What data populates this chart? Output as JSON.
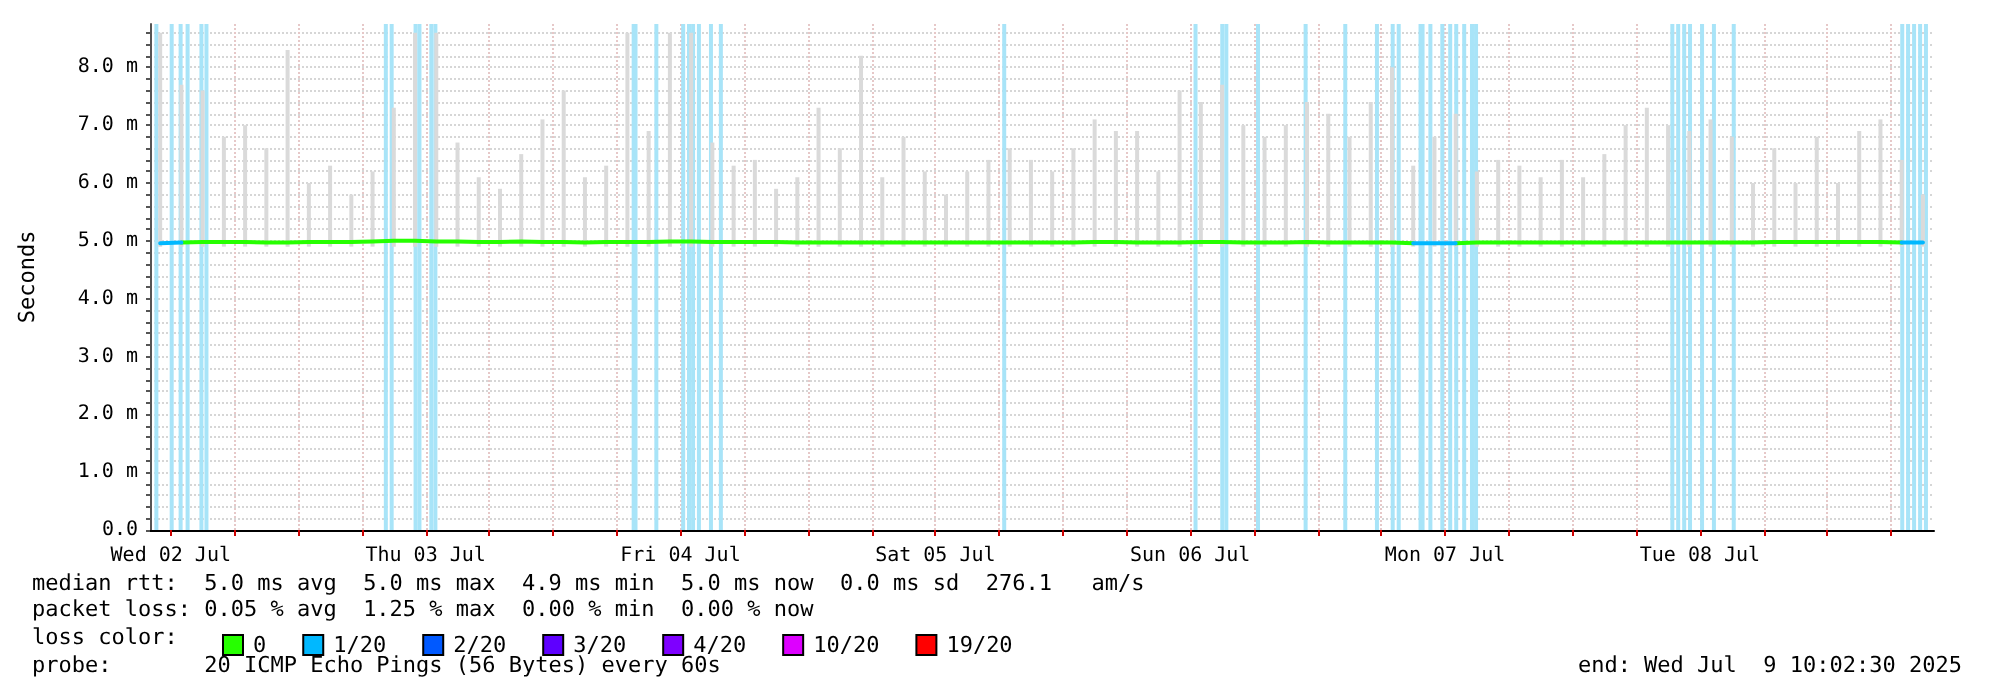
{
  "chart_data": {
    "type": "line",
    "ylabel": "Seconds",
    "legend_title": "loss color:",
    "legend": "bottom",
    "grid": true,
    "marker": "none",
    "line_style": "solid",
    "annotations": [
      "median rtt:  5.0 ms avg  5.0 ms max  4.9 ms min  5.0 ms now  0.0 ms sd  276.1   am/s",
      "packet loss: 0.05 % avg  1.25 % max  0.00 % min  0.00 % now",
      "probe:       20 ICMP Echo Pings (56 Bytes) every 60s",
      "end: Wed Jul  9 10:02:30 2025"
    ],
    "xlim": [
      "2025-07-02T10:02:30",
      "2025-07-09T10:02:30"
    ],
    "xticks": [
      {
        "value": "2025-07-02T12:00",
        "label": "Wed 02 Jul"
      },
      {
        "value": "2025-07-02T18:00",
        "label": null
      },
      {
        "value": "2025-07-03T00:00",
        "label": null
      },
      {
        "value": "2025-07-03T06:00",
        "label": null
      },
      {
        "value": "2025-07-03T12:00",
        "label": "Thu 03 Jul"
      },
      {
        "value": "2025-07-03T18:00",
        "label": null
      },
      {
        "value": "2025-07-04T00:00",
        "label": null
      },
      {
        "value": "2025-07-04T06:00",
        "label": null
      },
      {
        "value": "2025-07-04T12:00",
        "label": "Fri 04 Jul"
      },
      {
        "value": "2025-07-04T18:00",
        "label": null
      },
      {
        "value": "2025-07-05T00:00",
        "label": null
      },
      {
        "value": "2025-07-05T06:00",
        "label": null
      },
      {
        "value": "2025-07-05T12:00",
        "label": "Sat 05 Jul"
      },
      {
        "value": "2025-07-05T18:00",
        "label": null
      },
      {
        "value": "2025-07-06T00:00",
        "label": null
      },
      {
        "value": "2025-07-06T06:00",
        "label": null
      },
      {
        "value": "2025-07-06T12:00",
        "label": "Sun 06 Jul"
      },
      {
        "value": "2025-07-06T18:00",
        "label": null
      },
      {
        "value": "2025-07-07T00:00",
        "label": null
      },
      {
        "value": "2025-07-07T06:00",
        "label": null
      },
      {
        "value": "2025-07-07T12:00",
        "label": "Mon 07 Jul"
      },
      {
        "value": "2025-07-07T18:00",
        "label": null
      },
      {
        "value": "2025-07-08T00:00",
        "label": null
      },
      {
        "value": "2025-07-08T06:00",
        "label": null
      },
      {
        "value": "2025-07-08T12:00",
        "label": "Tue 08 Jul"
      },
      {
        "value": "2025-07-08T18:00",
        "label": null
      },
      {
        "value": "2025-07-09T00:00",
        "label": null
      },
      {
        "value": "2025-07-09T06:00",
        "label": null
      }
    ],
    "ylim": [
      0,
      8.75
    ],
    "yticks": [
      {
        "value": 0,
        "label": "0.0"
      },
      {
        "value": 0.2,
        "label": null
      },
      {
        "value": 0.4,
        "label": null
      },
      {
        "value": 0.6,
        "label": null
      },
      {
        "value": 0.8,
        "label": null
      },
      {
        "value": 1,
        "label": "1.0 m"
      },
      {
        "value": 1.2,
        "label": null
      },
      {
        "value": 1.4,
        "label": null
      },
      {
        "value": 1.6,
        "label": null
      },
      {
        "value": 1.8,
        "label": null
      },
      {
        "value": 2,
        "label": "2.0 m"
      },
      {
        "value": 2.2,
        "label": null
      },
      {
        "value": 2.4,
        "label": null
      },
      {
        "value": 2.6,
        "label": null
      },
      {
        "value": 2.8,
        "label": null
      },
      {
        "value": 3,
        "label": "3.0 m"
      },
      {
        "value": 3.2,
        "label": null
      },
      {
        "value": 3.4,
        "label": null
      },
      {
        "value": 3.6,
        "label": null
      },
      {
        "value": 3.8,
        "label": null
      },
      {
        "value": 4,
        "label": "4.0 m"
      },
      {
        "value": 4.2,
        "label": null
      },
      {
        "value": 4.4,
        "label": null
      },
      {
        "value": 4.6,
        "label": null
      },
      {
        "value": 4.8,
        "label": null
      },
      {
        "value": 5,
        "label": "5.0 m"
      },
      {
        "value": 5.2,
        "label": null
      },
      {
        "value": 5.4,
        "label": null
      },
      {
        "value": 5.6,
        "label": null
      },
      {
        "value": 5.8,
        "label": null
      },
      {
        "value": 6,
        "label": "6.0 m"
      },
      {
        "value": 6.2,
        "label": null
      },
      {
        "value": 6.4,
        "label": null
      },
      {
        "value": 6.6,
        "label": null
      },
      {
        "value": 6.8,
        "label": null
      },
      {
        "value": 7,
        "label": "7.0 m"
      },
      {
        "value": 7.2,
        "label": null
      },
      {
        "value": 7.4,
        "label": null
      },
      {
        "value": 7.6,
        "label": null
      },
      {
        "value": 7.8,
        "label": null
      },
      {
        "value": 8,
        "label": "8.0 m"
      },
      {
        "value": 8.2,
        "label": null
      },
      {
        "value": 8.4,
        "label": null
      },
      {
        "value": 8.6,
        "label": null
      }
    ],
    "x": [
      "2025-07-02T11:00",
      "2025-07-02T13:00",
      "2025-07-02T15:00",
      "2025-07-02T17:00",
      "2025-07-02T19:00",
      "2025-07-02T21:00",
      "2025-07-02T23:00",
      "2025-07-03T01:00",
      "2025-07-03T03:00",
      "2025-07-03T05:00",
      "2025-07-03T07:00",
      "2025-07-03T09:00",
      "2025-07-03T11:00",
      "2025-07-03T13:00",
      "2025-07-03T15:00",
      "2025-07-03T17:00",
      "2025-07-03T19:00",
      "2025-07-03T21:00",
      "2025-07-03T23:00",
      "2025-07-04T01:00",
      "2025-07-04T03:00",
      "2025-07-04T05:00",
      "2025-07-04T07:00",
      "2025-07-04T09:00",
      "2025-07-04T11:00",
      "2025-07-04T13:00",
      "2025-07-04T15:00",
      "2025-07-04T17:00",
      "2025-07-04T19:00",
      "2025-07-04T21:00",
      "2025-07-04T23:00",
      "2025-07-05T01:00",
      "2025-07-05T03:00",
      "2025-07-05T05:00",
      "2025-07-05T07:00",
      "2025-07-05T09:00",
      "2025-07-05T11:00",
      "2025-07-05T13:00",
      "2025-07-05T15:00",
      "2025-07-05T17:00",
      "2025-07-05T19:00",
      "2025-07-05T21:00",
      "2025-07-05T23:00",
      "2025-07-06T01:00",
      "2025-07-06T03:00",
      "2025-07-06T05:00",
      "2025-07-06T07:00",
      "2025-07-06T09:00",
      "2025-07-06T11:00",
      "2025-07-06T13:00",
      "2025-07-06T15:00",
      "2025-07-06T17:00",
      "2025-07-06T19:00",
      "2025-07-06T21:00",
      "2025-07-06T23:00",
      "2025-07-07T01:00",
      "2025-07-07T03:00",
      "2025-07-07T05:00",
      "2025-07-07T07:00",
      "2025-07-07T09:00",
      "2025-07-07T11:00",
      "2025-07-07T13:00",
      "2025-07-07T15:00",
      "2025-07-07T17:00",
      "2025-07-07T19:00",
      "2025-07-07T21:00",
      "2025-07-07T23:00",
      "2025-07-08T01:00",
      "2025-07-08T03:00",
      "2025-07-08T05:00",
      "2025-07-08T07:00",
      "2025-07-08T09:00",
      "2025-07-08T11:00",
      "2025-07-08T13:00",
      "2025-07-08T15:00",
      "2025-07-08T17:00",
      "2025-07-08T19:00",
      "2025-07-08T21:00",
      "2025-07-08T23:00",
      "2025-07-09T01:00",
      "2025-07-09T03:00",
      "2025-07-09T05:00",
      "2025-07-09T07:00",
      "2025-07-09T09:00"
    ],
    "series": [
      {
        "type": "bar",
        "color": "#dadada",
        "base": [
          4.9,
          4.9,
          4.9,
          4.9,
          4.9,
          4.9,
          4.9,
          4.9,
          4.9,
          4.9,
          4.9,
          4.9,
          4.9,
          4.9,
          4.9,
          4.9,
          4.9,
          4.9,
          4.9,
          4.9,
          4.9,
          4.9,
          4.9,
          4.9,
          4.9,
          4.9,
          4.9,
          4.9,
          4.9,
          4.9,
          4.9,
          4.9,
          4.9,
          4.9,
          4.9,
          4.9,
          4.9,
          4.9,
          4.9,
          4.9,
          4.9,
          4.9,
          4.9,
          4.9,
          4.9,
          4.9,
          4.9,
          4.9,
          4.9,
          4.9,
          4.9,
          4.9,
          4.9,
          4.9,
          4.9,
          4.9,
          4.9,
          4.9,
          4.9,
          4.9,
          4.9,
          4.9,
          4.9,
          4.9,
          4.9,
          4.9,
          4.9,
          4.9,
          4.9,
          4.9,
          4.9,
          4.9,
          4.9,
          4.9,
          4.9,
          4.9,
          4.9,
          4.9,
          4.9,
          4.9,
          4.9,
          4.9,
          4.9,
          4.9
        ],
        "values": [
          3.7,
          2.8,
          2.7,
          1.9,
          2.1,
          1.7,
          3.4,
          1.1,
          1.4,
          0.9,
          1.3,
          2.4,
          3.7,
          3.7,
          1.8,
          1.2,
          1.0,
          1.6,
          2.2,
          2.7,
          1.2,
          1.4,
          3.7,
          2.0,
          3.7,
          3.7,
          1.8,
          1.4,
          1.5,
          1.0,
          1.2,
          2.4,
          1.7,
          3.3,
          1.2,
          1.9,
          1.3,
          0.9,
          1.3,
          1.5,
          1.7,
          1.5,
          1.3,
          1.7,
          2.2,
          2.0,
          2.0,
          1.3,
          2.7,
          2.5,
          2.8,
          2.1,
          1.9,
          2.1,
          2.5,
          2.3,
          1.9,
          2.5,
          3.1,
          1.4,
          1.9,
          2.3,
          1.3,
          1.5,
          1.4,
          1.2,
          1.5,
          1.2,
          1.6,
          2.1,
          2.4,
          2.1,
          2.0,
          2.2,
          1.9,
          1.1,
          1.7,
          1.1,
          1.9,
          1.1,
          2.0,
          2.2,
          1.5,
          0.9
        ]
      },
      {
        "name": "0",
        "color": "#26ff00",
        "values": [
          null,
          4.97,
          4.98,
          4.98,
          4.98,
          4.97,
          4.97,
          4.98,
          4.98,
          4.98,
          4.99,
          5.0,
          5.0,
          4.99,
          4.99,
          4.98,
          4.98,
          4.99,
          4.98,
          4.98,
          4.97,
          4.98,
          4.98,
          4.98,
          4.99,
          4.99,
          4.98,
          4.98,
          4.98,
          4.98,
          4.97,
          4.97,
          4.97,
          4.97,
          4.97,
          4.97,
          4.97,
          4.97,
          4.97,
          4.97,
          4.97,
          4.97,
          4.97,
          4.97,
          4.98,
          4.98,
          4.97,
          4.97,
          4.97,
          4.98,
          4.98,
          4.97,
          4.97,
          4.97,
          4.98,
          4.97,
          4.97,
          4.97,
          4.97,
          4.96,
          null,
          4.96,
          4.97,
          4.97,
          4.97,
          4.97,
          4.97,
          4.97,
          4.97,
          4.97,
          4.97,
          4.97,
          4.97,
          4.97,
          4.97,
          4.97,
          4.98,
          4.98,
          4.98,
          4.98,
          4.98,
          4.98,
          4.97,
          null
        ]
      },
      {
        "name": "1/20",
        "color": "#00b8ff",
        "values": [
          4.96,
          4.97,
          null,
          null,
          null,
          null,
          null,
          null,
          null,
          null,
          null,
          null,
          null,
          null,
          null,
          null,
          null,
          null,
          null,
          null,
          null,
          null,
          null,
          null,
          null,
          null,
          null,
          null,
          null,
          null,
          null,
          null,
          null,
          null,
          null,
          null,
          null,
          null,
          null,
          null,
          null,
          null,
          null,
          null,
          null,
          null,
          null,
          null,
          null,
          null,
          null,
          null,
          null,
          null,
          null,
          null,
          null,
          null,
          null,
          4.96,
          4.96,
          4.96,
          null,
          null,
          null,
          null,
          null,
          null,
          null,
          null,
          null,
          null,
          null,
          null,
          null,
          null,
          null,
          null,
          null,
          null,
          null,
          null,
          4.97,
          4.97
        ]
      },
      {
        "name": "2/20",
        "color": "#0059ff",
        "values": [
          null,
          null,
          null,
          null,
          null,
          null,
          null,
          null,
          null,
          null,
          null,
          null,
          null,
          null,
          null,
          null,
          null,
          null,
          null,
          null,
          null,
          null,
          null,
          null,
          null,
          null,
          null,
          null,
          null,
          null,
          null,
          null,
          null,
          null,
          null,
          null,
          null,
          null,
          null,
          null,
          null,
          null,
          null,
          null,
          null,
          null,
          null,
          null,
          null,
          null,
          null,
          null,
          null,
          null,
          null,
          null,
          null,
          null,
          null,
          null,
          null,
          null,
          null,
          null,
          null,
          null,
          null,
          null,
          null,
          null,
          null,
          null,
          null,
          null,
          null,
          null,
          null,
          null,
          null,
          null,
          null,
          null,
          null,
          null
        ]
      },
      {
        "name": "3/20",
        "color": "#5e00ff",
        "values": [
          null,
          null,
          null,
          null,
          null,
          null,
          null,
          null,
          null,
          null,
          null,
          null,
          null,
          null,
          null,
          null,
          null,
          null,
          null,
          null,
          null,
          null,
          null,
          null,
          null,
          null,
          null,
          null,
          null,
          null,
          null,
          null,
          null,
          null,
          null,
          null,
          null,
          null,
          null,
          null,
          null,
          null,
          null,
          null,
          null,
          null,
          null,
          null,
          null,
          null,
          null,
          null,
          null,
          null,
          null,
          null,
          null,
          null,
          null,
          null,
          null,
          null,
          null,
          null,
          null,
          null,
          null,
          null,
          null,
          null,
          null,
          null,
          null,
          null,
          null,
          null,
          null,
          null,
          null,
          null,
          null,
          null,
          null,
          null
        ]
      },
      {
        "name": "4/20",
        "color": "#7e00ff",
        "values": [
          null,
          null,
          null,
          null,
          null,
          null,
          null,
          null,
          null,
          null,
          null,
          null,
          null,
          null,
          null,
          null,
          null,
          null,
          null,
          null,
          null,
          null,
          null,
          null,
          null,
          null,
          null,
          null,
          null,
          null,
          null,
          null,
          null,
          null,
          null,
          null,
          null,
          null,
          null,
          null,
          null,
          null,
          null,
          null,
          null,
          null,
          null,
          null,
          null,
          null,
          null,
          null,
          null,
          null,
          null,
          null,
          null,
          null,
          null,
          null,
          null,
          null,
          null,
          null,
          null,
          null,
          null,
          null,
          null,
          null,
          null,
          null,
          null,
          null,
          null,
          null,
          null,
          null,
          null,
          null,
          null,
          null,
          null,
          null
        ]
      },
      {
        "name": "10/20",
        "color": "#dd00ff",
        "values": [
          null,
          null,
          null,
          null,
          null,
          null,
          null,
          null,
          null,
          null,
          null,
          null,
          null,
          null,
          null,
          null,
          null,
          null,
          null,
          null,
          null,
          null,
          null,
          null,
          null,
          null,
          null,
          null,
          null,
          null,
          null,
          null,
          null,
          null,
          null,
          null,
          null,
          null,
          null,
          null,
          null,
          null,
          null,
          null,
          null,
          null,
          null,
          null,
          null,
          null,
          null,
          null,
          null,
          null,
          null,
          null,
          null,
          null,
          null,
          null,
          null,
          null,
          null,
          null,
          null,
          null,
          null,
          null,
          null,
          null,
          null,
          null,
          null,
          null,
          null,
          null,
          null,
          null,
          null,
          null,
          null,
          null,
          null,
          null
        ]
      },
      {
        "name": "19/20",
        "color": "#ff0000",
        "values": [
          null,
          null,
          null,
          null,
          null,
          null,
          null,
          null,
          null,
          null,
          null,
          null,
          null,
          null,
          null,
          null,
          null,
          null,
          null,
          null,
          null,
          null,
          null,
          null,
          null,
          null,
          null,
          null,
          null,
          null,
          null,
          null,
          null,
          null,
          null,
          null,
          null,
          null,
          null,
          null,
          null,
          null,
          null,
          null,
          null,
          null,
          null,
          null,
          null,
          null,
          null,
          null,
          null,
          null,
          null,
          null,
          null,
          null,
          null,
          null,
          null,
          null,
          null,
          null,
          null,
          null,
          null,
          null,
          null,
          null,
          null,
          null,
          null,
          null,
          null,
          null,
          null,
          null,
          null,
          null,
          null,
          null,
          null,
          null
        ]
      }
    ],
    "bands": [
      {
        "axis": "x",
        "from": "2025-07-02T10:30",
        "to": "2025-07-02T10:47",
        "color": "#a8e4f8"
      },
      {
        "axis": "x",
        "from": "2025-07-02T12:50",
        "to": "2025-07-02T13:01",
        "color": "#a8e4f8"
      },
      {
        "axis": "x",
        "from": "2025-07-02T15:16",
        "to": "2025-07-02T15:27",
        "color": "#a8e4f8"
      },
      {
        "axis": "x",
        "from": "2025-07-04T07:24",
        "to": "2025-07-04T07:57",
        "color": "#a8e4f8"
      },
      {
        "axis": "x",
        "from": "2025-07-04T09:38",
        "to": "2025-07-04T09:49",
        "color": "#a8e4f8"
      },
      {
        "axis": "x",
        "from": "2025-07-06T12:24",
        "to": "2025-07-06T12:36",
        "color": "#a8e4f8"
      },
      {
        "axis": "x",
        "from": "2025-07-07T05:24",
        "to": "2025-07-07T05:46",
        "color": "#a8e4f8"
      },
      {
        "axis": "x",
        "from": "2025-07-07T09:30",
        "to": "2025-07-07T10:04",
        "color": "#a8e4f8"
      },
      {
        "axis": "x",
        "from": "2025-07-07T11:33",
        "to": "2025-07-07T11:56",
        "color": "#a8e4f8"
      }
    ],
    "ref_lines": [
      {
        "axis": "x",
        "value": "2025-07-02T12:05",
        "color": "#a8e4f8"
      },
      {
        "axis": "x",
        "value": "2025-07-02T13:35",
        "color": "#a8e4f8"
      },
      {
        "axis": "x",
        "value": "2025-07-02T14:53",
        "color": "#a8e4f8"
      },
      {
        "axis": "x",
        "value": "2025-07-03T08:15",
        "color": "#a8e4f8"
      },
      {
        "axis": "x",
        "value": "2025-07-03T08:48",
        "color": "#a8e4f8"
      },
      {
        "axis": "x",
        "value": "2025-07-03T11:03",
        "color": "#a8e4f8"
      },
      {
        "axis": "x",
        "value": "2025-07-03T11:25",
        "color": "#a8e4f8"
      },
      {
        "axis": "x",
        "value": "2025-07-03T12:32",
        "color": "#a8e4f8"
      },
      {
        "axis": "x",
        "value": "2025-07-03T12:55",
        "color": "#a8e4f8"
      },
      {
        "axis": "x",
        "value": "2025-07-04T12:15",
        "color": "#a8e4f8"
      },
      {
        "axis": "x",
        "value": "2025-07-04T12:48",
        "color": "#a8e4f8"
      },
      {
        "axis": "x",
        "value": "2025-07-04T13:11",
        "color": "#a8e4f8"
      },
      {
        "axis": "x",
        "value": "2025-07-04T13:44",
        "color": "#a8e4f8"
      },
      {
        "axis": "x",
        "value": "2025-07-04T14:52",
        "color": "#a8e4f8"
      },
      {
        "axis": "x",
        "value": "2025-07-04T15:48",
        "color": "#a8e4f8"
      },
      {
        "axis": "x",
        "value": "2025-07-05T18:29",
        "color": "#a8e4f8"
      },
      {
        "axis": "x",
        "value": "2025-07-06T15:01",
        "color": "#a8e4f8"
      },
      {
        "axis": "x",
        "value": "2025-07-06T15:24",
        "color": "#a8e4f8"
      },
      {
        "axis": "x",
        "value": "2025-07-06T18:23",
        "color": "#a8e4f8"
      },
      {
        "axis": "x",
        "value": "2025-07-06T22:52",
        "color": "#a8e4f8"
      },
      {
        "axis": "x",
        "value": "2025-07-07T02:36",
        "color": "#a8e4f8"
      },
      {
        "axis": "x",
        "value": "2025-07-07T07:04",
        "color": "#a8e4f8"
      },
      {
        "axis": "x",
        "value": "2025-07-07T07:38",
        "color": "#a8e4f8"
      },
      {
        "axis": "x",
        "value": "2025-07-07T10:37",
        "color": "#a8e4f8"
      },
      {
        "axis": "x",
        "value": "2025-07-07T12:29",
        "color": "#a8e4f8"
      },
      {
        "axis": "x",
        "value": "2025-07-07T13:03",
        "color": "#a8e4f8"
      },
      {
        "axis": "x",
        "value": "2025-07-07T13:48",
        "color": "#a8e4f8"
      },
      {
        "axis": "x",
        "value": "2025-07-07T14:32",
        "color": "#a8e4f8"
      },
      {
        "axis": "x",
        "value": "2025-07-07T14:55",
        "color": "#a8e4f8"
      },
      {
        "axis": "x",
        "value": "2025-07-08T09:24",
        "color": "#a8e4f8"
      },
      {
        "axis": "x",
        "value": "2025-07-08T09:57",
        "color": "#a8e4f8"
      },
      {
        "axis": "x",
        "value": "2025-07-08T10:31",
        "color": "#a8e4f8"
      },
      {
        "axis": "x",
        "value": "2025-07-08T11:04",
        "color": "#a8e4f8"
      },
      {
        "axis": "x",
        "value": "2025-07-08T12:12",
        "color": "#a8e4f8"
      },
      {
        "axis": "x",
        "value": "2025-07-08T13:19",
        "color": "#a8e4f8"
      },
      {
        "axis": "x",
        "value": "2025-07-08T15:11",
        "color": "#a8e4f8"
      },
      {
        "axis": "x",
        "value": "2025-07-09T07:03",
        "color": "#a8e4f8"
      },
      {
        "axis": "x",
        "value": "2025-07-09T07:36",
        "color": "#a8e4f8"
      },
      {
        "axis": "x",
        "value": "2025-07-09T08:10",
        "color": "#a8e4f8"
      },
      {
        "axis": "x",
        "value": "2025-07-09T08:44",
        "color": "#a8e4f8"
      },
      {
        "axis": "x",
        "value": "2025-07-09T09:17",
        "color": "#a8e4f8"
      }
    ]
  }
}
